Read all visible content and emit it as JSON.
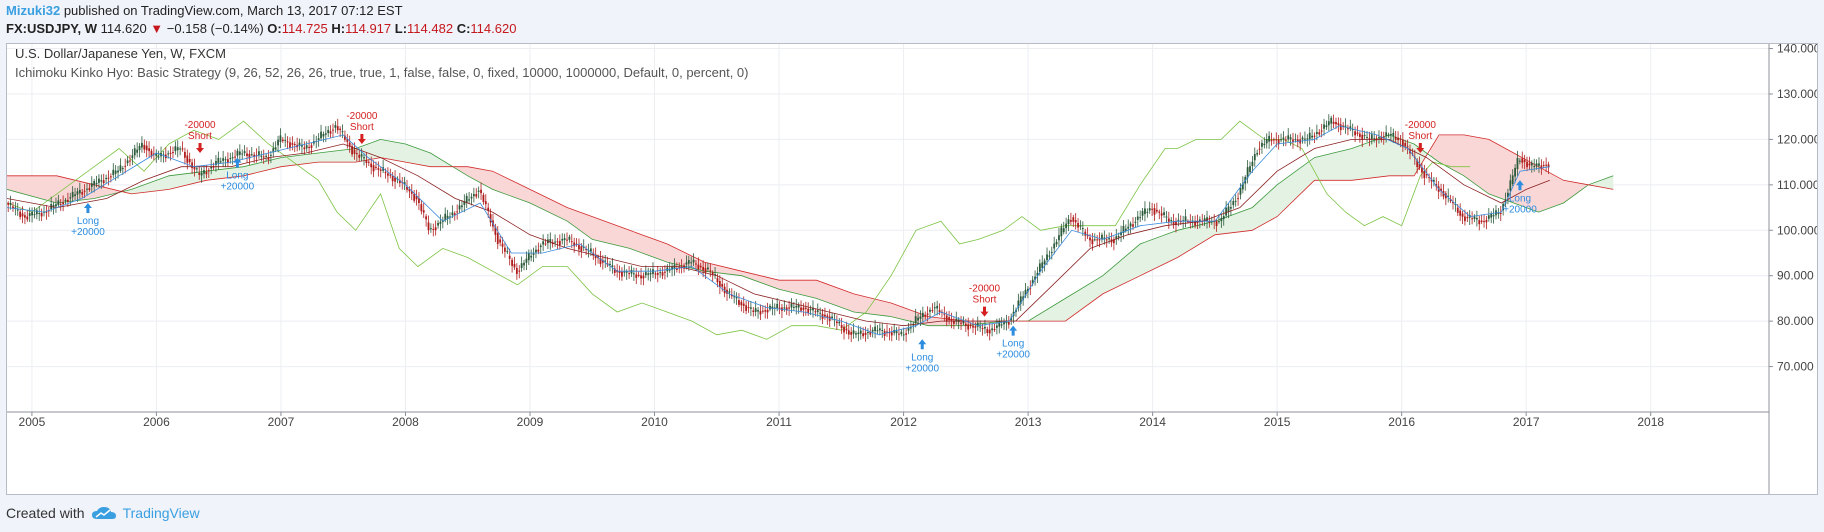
{
  "header": {
    "author": "Mizuki32",
    "published": "published on TradingView.com, March 13, 2017 07:12 EST",
    "symbol": "FX:USDJPY, W",
    "last": "114.620",
    "change": "−0.158 (−0.14%)",
    "open_label": "O:",
    "open_value": "114.725",
    "high_label": "H:",
    "high_value": "114.917",
    "low_label": "L:",
    "low_value": "114.482",
    "close_label": "C:",
    "close_value": "114.620",
    "down_arrow": "▼"
  },
  "footer": {
    "created_with": "Created with",
    "brand": "TradingView",
    "logo_icon": "tradingview-cloud-icon"
  },
  "colors": {
    "up": "#2a5a3a",
    "down": "#b01c1c",
    "cloud_bull": "#e3f2e3",
    "cloud_bear": "#fad7d7",
    "span_a": "#3c9a3c",
    "span_b": "#d22a2a",
    "lagging": "#7cc342",
    "conversion": "#3a8bdc",
    "base": "#8b2020",
    "long_signal": "#2b8ce0",
    "short_signal": "#d42020"
  },
  "chart_data": {
    "type": "candlestick",
    "title": "U.S. Dollar/Japanese Yen, W, FXCM",
    "subtitle": "Ichimoku Kinko Hyo: Basic Strategy (9, 26, 52, 26, 26, true, true, 1, false, false, 0, fixed, 10000, 1000000, Default, 0, percent, 0)",
    "xlim": [
      2004.8,
      2018.95
    ],
    "ylim": [
      60,
      141
    ],
    "x_ticks": [
      2005,
      2006,
      2007,
      2008,
      2009,
      2010,
      2011,
      2012,
      2013,
      2014,
      2015,
      2016,
      2017,
      2018
    ],
    "x_tick_labels": [
      "2005",
      "2006",
      "2007",
      "2008",
      "2009",
      "2010",
      "2011",
      "2012",
      "2013",
      "2014",
      "2015",
      "2016",
      "2017",
      "2018"
    ],
    "y_ticks": [
      70,
      80,
      90,
      100,
      110,
      120,
      130,
      140
    ],
    "y_tick_labels": [
      "70.000",
      "80.000",
      "90.000",
      "100.000",
      "110.000",
      "120.000",
      "130.000",
      "140.000"
    ],
    "price_path": [
      [
        2004.8,
        106
      ],
      [
        2004.95,
        103
      ],
      [
        2005.1,
        104
      ],
      [
        2005.3,
        107
      ],
      [
        2005.5,
        110
      ],
      [
        2005.7,
        113
      ],
      [
        2005.9,
        119
      ],
      [
        2006.0,
        116
      ],
      [
        2006.2,
        118
      ],
      [
        2006.35,
        112
      ],
      [
        2006.5,
        115
      ],
      [
        2006.7,
        117
      ],
      [
        2006.9,
        116
      ],
      [
        2007.0,
        120
      ],
      [
        2007.2,
        118
      ],
      [
        2007.45,
        123
      ],
      [
        2007.6,
        117
      ],
      [
        2007.75,
        114
      ],
      [
        2007.95,
        111
      ],
      [
        2008.1,
        107
      ],
      [
        2008.2,
        100
      ],
      [
        2008.4,
        104
      ],
      [
        2008.6,
        109
      ],
      [
        2008.75,
        98
      ],
      [
        2008.9,
        91
      ],
      [
        2009.1,
        97
      ],
      [
        2009.3,
        98
      ],
      [
        2009.5,
        95
      ],
      [
        2009.7,
        91
      ],
      [
        2009.9,
        90
      ],
      [
        2010.1,
        91
      ],
      [
        2010.3,
        93
      ],
      [
        2010.45,
        91
      ],
      [
        2010.6,
        86
      ],
      [
        2010.8,
        82
      ],
      [
        2011.0,
        83
      ],
      [
        2011.2,
        83
      ],
      [
        2011.4,
        81
      ],
      [
        2011.6,
        77
      ],
      [
        2011.8,
        78
      ],
      [
        2012.0,
        77
      ],
      [
        2012.1,
        80
      ],
      [
        2012.25,
        83
      ],
      [
        2012.4,
        80
      ],
      [
        2012.55,
        79
      ],
      [
        2012.7,
        78
      ],
      [
        2012.85,
        80
      ],
      [
        2013.0,
        87
      ],
      [
        2013.2,
        96
      ],
      [
        2013.35,
        103
      ],
      [
        2013.5,
        98
      ],
      [
        2013.7,
        98
      ],
      [
        2013.9,
        103
      ],
      [
        2014.0,
        105
      ],
      [
        2014.15,
        102
      ],
      [
        2014.35,
        102
      ],
      [
        2014.55,
        102
      ],
      [
        2014.7,
        108
      ],
      [
        2014.85,
        118
      ],
      [
        2014.95,
        120
      ],
      [
        2015.1,
        120
      ],
      [
        2015.25,
        120
      ],
      [
        2015.45,
        124
      ],
      [
        2015.6,
        122
      ],
      [
        2015.75,
        120
      ],
      [
        2015.9,
        121
      ],
      [
        2016.0,
        120
      ],
      [
        2016.1,
        116
      ],
      [
        2016.2,
        112
      ],
      [
        2016.35,
        108
      ],
      [
        2016.5,
        103
      ],
      [
        2016.65,
        102
      ],
      [
        2016.8,
        104
      ],
      [
        2016.88,
        110
      ],
      [
        2016.95,
        116
      ],
      [
        2017.05,
        114
      ],
      [
        2017.19,
        114.6
      ]
    ],
    "span_a": [
      [
        2004.8,
        109
      ],
      [
        2005.2,
        106
      ],
      [
        2005.5,
        107
      ],
      [
        2005.8,
        109
      ],
      [
        2006.1,
        112
      ],
      [
        2006.4,
        113
      ],
      [
        2006.7,
        114
      ],
      [
        2007.0,
        116
      ],
      [
        2007.3,
        117
      ],
      [
        2007.6,
        118
      ],
      [
        2007.8,
        120
      ],
      [
        2008.0,
        119
      ],
      [
        2008.2,
        117
      ],
      [
        2008.5,
        112
      ],
      [
        2008.7,
        109
      ],
      [
        2009.0,
        106
      ],
      [
        2009.3,
        102
      ],
      [
        2009.5,
        98
      ],
      [
        2009.8,
        96
      ],
      [
        2010.1,
        93
      ],
      [
        2010.4,
        91
      ],
      [
        2010.7,
        90
      ],
      [
        2011.0,
        87
      ],
      [
        2011.3,
        85
      ],
      [
        2011.6,
        82
      ],
      [
        2011.9,
        81
      ],
      [
        2012.2,
        79
      ],
      [
        2012.5,
        79
      ],
      [
        2012.8,
        80
      ],
      [
        2013.0,
        80
      ],
      [
        2013.3,
        85
      ],
      [
        2013.6,
        90
      ],
      [
        2013.9,
        97
      ],
      [
        2014.2,
        100
      ],
      [
        2014.5,
        102
      ],
      [
        2014.8,
        105
      ],
      [
        2015.0,
        110
      ],
      [
        2015.3,
        116
      ],
      [
        2015.6,
        118
      ],
      [
        2015.9,
        121
      ],
      [
        2016.1,
        119
      ],
      [
        2016.3,
        115
      ],
      [
        2016.5,
        112
      ],
      [
        2016.7,
        108
      ],
      [
        2016.9,
        106
      ],
      [
        2017.1,
        104
      ],
      [
        2017.3,
        106
      ],
      [
        2017.5,
        110
      ],
      [
        2017.7,
        112
      ]
    ],
    "span_b": [
      [
        2004.8,
        112
      ],
      [
        2005.2,
        112
      ],
      [
        2005.5,
        110
      ],
      [
        2005.8,
        108
      ],
      [
        2006.1,
        109
      ],
      [
        2006.4,
        111
      ],
      [
        2006.7,
        112
      ],
      [
        2007.0,
        114
      ],
      [
        2007.3,
        115
      ],
      [
        2007.6,
        115
      ],
      [
        2007.8,
        116
      ],
      [
        2008.0,
        115
      ],
      [
        2008.2,
        114
      ],
      [
        2008.5,
        114
      ],
      [
        2008.7,
        113
      ],
      [
        2009.0,
        109
      ],
      [
        2009.3,
        105
      ],
      [
        2009.5,
        103
      ],
      [
        2009.8,
        100
      ],
      [
        2010.1,
        97
      ],
      [
        2010.4,
        93
      ],
      [
        2010.7,
        91
      ],
      [
        2011.0,
        89
      ],
      [
        2011.3,
        89
      ],
      [
        2011.6,
        86
      ],
      [
        2011.9,
        84
      ],
      [
        2012.2,
        81
      ],
      [
        2012.5,
        80
      ],
      [
        2012.8,
        80
      ],
      [
        2013.0,
        80
      ],
      [
        2013.3,
        80
      ],
      [
        2013.6,
        86
      ],
      [
        2013.9,
        90
      ],
      [
        2014.2,
        94
      ],
      [
        2014.5,
        99
      ],
      [
        2014.8,
        100
      ],
      [
        2015.0,
        103
      ],
      [
        2015.3,
        111
      ],
      [
        2015.6,
        111
      ],
      [
        2015.9,
        112
      ],
      [
        2016.1,
        112
      ],
      [
        2016.3,
        121
      ],
      [
        2016.5,
        121
      ],
      [
        2016.7,
        120
      ],
      [
        2016.9,
        117
      ],
      [
        2017.1,
        114
      ],
      [
        2017.3,
        111
      ],
      [
        2017.5,
        110
      ],
      [
        2017.7,
        109
      ]
    ],
    "lagging_span": [
      [
        2004.8,
        106
      ],
      [
        2005.0,
        104
      ],
      [
        2005.2,
        108
      ],
      [
        2005.5,
        114
      ],
      [
        2005.7,
        118
      ],
      [
        2005.9,
        113
      ],
      [
        2006.1,
        119
      ],
      [
        2006.3,
        122
      ],
      [
        2006.5,
        120
      ],
      [
        2006.7,
        124
      ],
      [
        2006.9,
        119
      ],
      [
        2007.1,
        115
      ],
      [
        2007.3,
        111
      ],
      [
        2007.45,
        104
      ],
      [
        2007.6,
        100
      ],
      [
        2007.8,
        108
      ],
      [
        2007.95,
        96
      ],
      [
        2008.1,
        92
      ],
      [
        2008.3,
        96
      ],
      [
        2008.5,
        94
      ],
      [
        2008.7,
        91
      ],
      [
        2008.9,
        88
      ],
      [
        2009.1,
        92
      ],
      [
        2009.3,
        92
      ],
      [
        2009.5,
        86
      ],
      [
        2009.7,
        82
      ],
      [
        2009.9,
        84
      ],
      [
        2010.1,
        82
      ],
      [
        2010.3,
        80
      ],
      [
        2010.5,
        77
      ],
      [
        2010.7,
        78
      ],
      [
        2010.9,
        76
      ],
      [
        2011.1,
        79
      ],
      [
        2011.3,
        79
      ],
      [
        2011.5,
        78
      ],
      [
        2011.7,
        82
      ],
      [
        2011.9,
        90
      ],
      [
        2012.1,
        100
      ],
      [
        2012.3,
        102
      ],
      [
        2012.45,
        97
      ],
      [
        2012.6,
        98
      ],
      [
        2012.8,
        100
      ],
      [
        2012.95,
        103
      ],
      [
        2013.1,
        100
      ],
      [
        2013.3,
        101
      ],
      [
        2013.5,
        101
      ],
      [
        2013.7,
        101
      ],
      [
        2013.9,
        110
      ],
      [
        2014.1,
        118
      ],
      [
        2014.2,
        118
      ],
      [
        2014.35,
        120
      ],
      [
        2014.55,
        120
      ],
      [
        2014.7,
        124
      ],
      [
        2014.9,
        120
      ],
      [
        2015.05,
        120
      ],
      [
        2015.2,
        118
      ],
      [
        2015.4,
        108
      ],
      [
        2015.55,
        104
      ],
      [
        2015.7,
        101
      ],
      [
        2015.85,
        103
      ],
      [
        2016.0,
        101
      ],
      [
        2016.15,
        112
      ],
      [
        2016.25,
        115
      ],
      [
        2016.4,
        114
      ],
      [
        2016.55,
        114
      ]
    ],
    "conversion_line": [
      [
        2004.8,
        105
      ],
      [
        2005.1,
        104
      ],
      [
        2005.4,
        107
      ],
      [
        2005.7,
        112
      ],
      [
        2006.0,
        117
      ],
      [
        2006.3,
        114
      ],
      [
        2006.6,
        115
      ],
      [
        2006.9,
        117
      ],
      [
        2007.2,
        119
      ],
      [
        2007.5,
        121
      ],
      [
        2007.7,
        116
      ],
      [
        2008.0,
        110
      ],
      [
        2008.3,
        102
      ],
      [
        2008.6,
        106
      ],
      [
        2008.85,
        95
      ],
      [
        2009.1,
        95
      ],
      [
        2009.4,
        97
      ],
      [
        2009.7,
        91
      ],
      [
        2010.0,
        91
      ],
      [
        2010.3,
        92
      ],
      [
        2010.6,
        86
      ],
      [
        2010.9,
        83
      ],
      [
        2011.2,
        82
      ],
      [
        2011.5,
        80
      ],
      [
        2011.8,
        77
      ],
      [
        2012.1,
        79
      ],
      [
        2012.3,
        82
      ],
      [
        2012.6,
        79
      ],
      [
        2012.85,
        80
      ],
      [
        2013.1,
        91
      ],
      [
        2013.35,
        100
      ],
      [
        2013.6,
        98
      ],
      [
        2013.9,
        101
      ],
      [
        2014.2,
        102
      ],
      [
        2014.5,
        102
      ],
      [
        2014.8,
        113
      ],
      [
        2015.0,
        119
      ],
      [
        2015.3,
        120
      ],
      [
        2015.5,
        123
      ],
      [
        2015.8,
        121
      ],
      [
        2016.05,
        118
      ],
      [
        2016.3,
        109
      ],
      [
        2016.55,
        103
      ],
      [
        2016.8,
        104
      ],
      [
        2016.95,
        113
      ],
      [
        2017.19,
        114
      ]
    ],
    "base_line": [
      [
        2004.8,
        107
      ],
      [
        2005.2,
        105
      ],
      [
        2005.6,
        107
      ],
      [
        2005.9,
        111
      ],
      [
        2006.2,
        114
      ],
      [
        2006.6,
        114
      ],
      [
        2006.9,
        116
      ],
      [
        2007.2,
        117
      ],
      [
        2007.5,
        119
      ],
      [
        2007.8,
        116
      ],
      [
        2008.1,
        112
      ],
      [
        2008.4,
        107
      ],
      [
        2008.7,
        104
      ],
      [
        2009.0,
        99
      ],
      [
        2009.3,
        96
      ],
      [
        2009.6,
        94
      ],
      [
        2009.9,
        92
      ],
      [
        2010.2,
        92
      ],
      [
        2010.5,
        90
      ],
      [
        2010.8,
        86
      ],
      [
        2011.1,
        84
      ],
      [
        2011.4,
        82
      ],
      [
        2011.7,
        80
      ],
      [
        2012.0,
        79
      ],
      [
        2012.3,
        80
      ],
      [
        2012.6,
        80
      ],
      [
        2012.9,
        80
      ],
      [
        2013.2,
        88
      ],
      [
        2013.5,
        96
      ],
      [
        2013.8,
        99
      ],
      [
        2014.1,
        101
      ],
      [
        2014.4,
        102
      ],
      [
        2014.7,
        105
      ],
      [
        2015.0,
        113
      ],
      [
        2015.3,
        118
      ],
      [
        2015.6,
        120
      ],
      [
        2015.9,
        120
      ],
      [
        2016.2,
        116
      ],
      [
        2016.5,
        110
      ],
      [
        2016.8,
        106
      ],
      [
        2017.0,
        109
      ],
      [
        2017.19,
        111
      ]
    ],
    "signals": [
      {
        "type": "long",
        "x": 2005.45,
        "y": 106,
        "label": "Long",
        "amount": "+20000"
      },
      {
        "type": "short",
        "x": 2006.35,
        "y": 117,
        "label": "Short",
        "amount": "-20000"
      },
      {
        "type": "long",
        "x": 2006.65,
        "y": 116,
        "label": "Long",
        "amount": "+20000"
      },
      {
        "type": "short",
        "x": 2007.65,
        "y": 119,
        "label": "Short",
        "amount": "-20000"
      },
      {
        "type": "long",
        "x": 2012.15,
        "y": 76,
        "label": "Long",
        "amount": "+20000"
      },
      {
        "type": "short",
        "x": 2012.65,
        "y": 81,
        "label": "Short",
        "amount": "-20000"
      },
      {
        "type": "long",
        "x": 2012.88,
        "y": 79,
        "label": "Long",
        "amount": "+20000"
      },
      {
        "type": "short",
        "x": 2016.15,
        "y": 117,
        "label": "Short",
        "amount": "-20000"
      },
      {
        "type": "long",
        "x": 2016.95,
        "y": 111,
        "label": "Long",
        "amount": "+20000"
      }
    ]
  }
}
